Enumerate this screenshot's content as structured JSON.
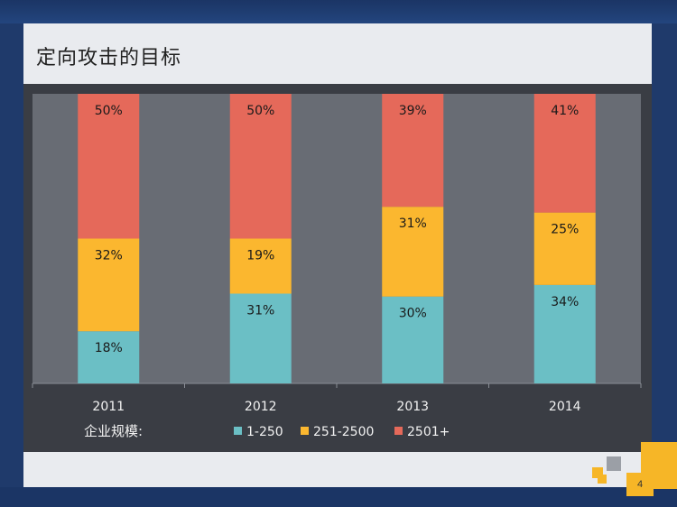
{
  "slide": {
    "title": "定向攻击的目标",
    "page_number": "4"
  },
  "colors": {
    "background": "#1f3a6b",
    "slide": "#e9ebef",
    "panel": "#3a3d44",
    "plot": "#686c74",
    "series_1_250": "#6bbfc5",
    "series_251_2500": "#fbb72f",
    "series_2501_plus": "#e5695a"
  },
  "chart_data": {
    "type": "bar",
    "stacked": true,
    "categories": [
      "2011",
      "2012",
      "2013",
      "2014"
    ],
    "series": [
      {
        "name": "1-250",
        "values": [
          18,
          31,
          30,
          34
        ],
        "labels": [
          "18%",
          "31%",
          "30%",
          "34%"
        ]
      },
      {
        "name": "251-2500",
        "values": [
          32,
          19,
          31,
          25
        ],
        "labels": [
          "32%",
          "19%",
          "31%",
          "25%"
        ]
      },
      {
        "name": "2501+",
        "values": [
          50,
          50,
          39,
          41
        ],
        "labels": [
          "50%",
          "50%",
          "39%",
          "41%"
        ]
      }
    ],
    "legend_title": "企业规模:",
    "legend_position": "bottom",
    "ylim": [
      0,
      100
    ],
    "grid": false
  }
}
